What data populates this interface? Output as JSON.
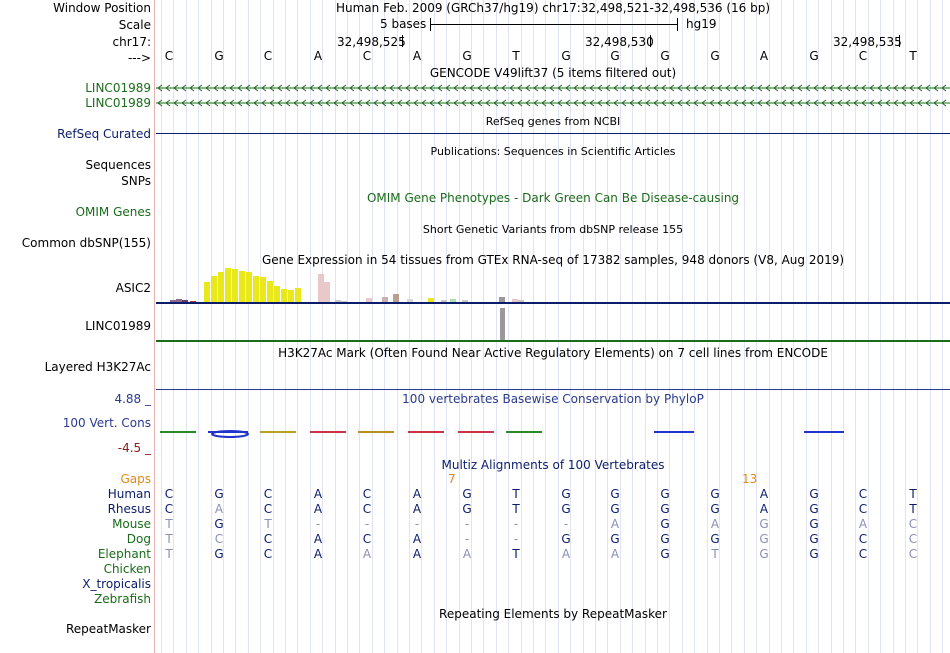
{
  "header": {
    "window_position_label": "Window Position",
    "window_position_value": "Human Feb. 2009 (GRCh37/hg19)   chr17:32,498,521-32,498,536 (16 bp)",
    "scale_label": "Scale",
    "scale_bases": "5 bases",
    "scale_assembly": "hg19",
    "chrom_label": "chr17:",
    "arrow_label": "--->",
    "positions": [
      "32,498,525",
      "32,498,530",
      "32,498,535"
    ],
    "bases": [
      "C",
      "G",
      "C",
      "A",
      "C",
      "A",
      "G",
      "T",
      "G",
      "G",
      "G",
      "G",
      "A",
      "G",
      "C",
      "T"
    ]
  },
  "tracks": {
    "gencode_title": "GENCODE V49lift37 (5 items filtered out)",
    "gencode_items": [
      "LINC01989",
      "LINC01989"
    ],
    "refseq_label": "RefSeq Curated",
    "refseq_title": "RefSeq genes from NCBI",
    "publications_title": "Publications: Sequences in Scientific Articles",
    "sequences_label": "Sequences",
    "snps_label": "SNPs",
    "omim_title": "OMIM Gene Phenotypes - Dark Green Can Be Disease-causing",
    "omim_label": "OMIM Genes",
    "dbsnp_title": "Short Genetic Variants from dbSNP release 155",
    "dbsnp_label": "Common dbSNP(155)",
    "gtex_title": "Gene Expression in 54 tissues from GTEx RNA-seq of 17382 samples, 948 donors (V8, Aug 2019)",
    "gtex_genes": [
      "ASIC2",
      "LINC01989"
    ],
    "h3k27_title": "H3K27Ac Mark (Often Found Near Active Regulatory Elements) on 7 cell lines from ENCODE",
    "h3k27_label": "Layered H3K27Ac",
    "phylop_title": "100 vertebrates Basewise Conservation by PhyloP",
    "phylop_label": "100 Vert. Cons",
    "phylop_max": "4.88 _",
    "phylop_min": "-4.5 _",
    "multiz_title": "Multiz Alignments of 100 Vertebrates",
    "gaps_label": "Gaps",
    "gap_counts": [
      "7",
      "13"
    ],
    "species": [
      {
        "name": "Human",
        "seq": "CGCACAGTGGGGAGCT"
      },
      {
        "name": "Rhesus",
        "seq": "CACACAGTGGGGAGCT"
      },
      {
        "name": "Mouse",
        "seq": "TGT------AGAGGAC"
      },
      {
        "name": "Dog",
        "seq": "TCCACA--GGGGGGCC"
      },
      {
        "name": "Elephant",
        "seq": "TGCAAAAT AAGTGGCC"
      },
      {
        "name": "Chicken",
        "seq": ""
      },
      {
        "name": "X_tropicalis",
        "seq": ""
      },
      {
        "name": "Zebrafish",
        "seq": ""
      }
    ],
    "repeat_title": "Repeating Elements by RepeatMasker",
    "repeat_label": "RepeatMasker"
  },
  "colors": {
    "gene_green": "#1a6b1a",
    "gene_navy": "#0b1c6b",
    "gtex_yellow": "#e8e81a",
    "gaps_orange": "#e08a1a"
  }
}
